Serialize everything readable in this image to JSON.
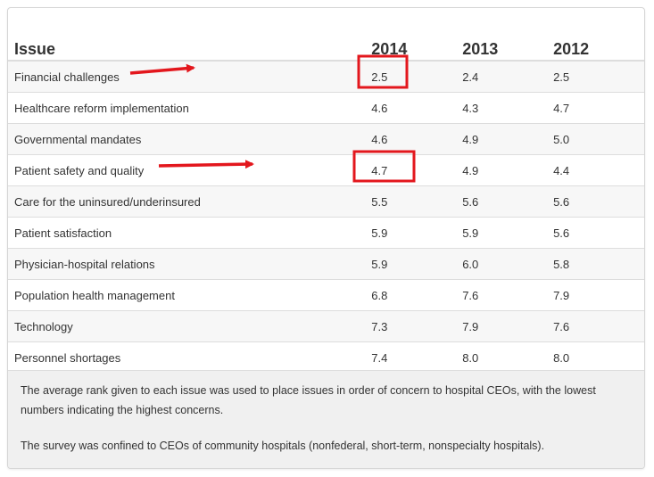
{
  "chart_data": {
    "type": "table",
    "columns": [
      "Issue",
      "2014",
      "2013",
      "2012"
    ],
    "rows": [
      {
        "issue": "Financial challenges",
        "y2014": "2.5",
        "y2013": "2.4",
        "y2012": "2.5"
      },
      {
        "issue": "Healthcare reform implementation",
        "y2014": "4.6",
        "y2013": "4.3",
        "y2012": "4.7"
      },
      {
        "issue": "Governmental mandates",
        "y2014": "4.6",
        "y2013": "4.9",
        "y2012": "5.0"
      },
      {
        "issue": "Patient safety and quality",
        "y2014": "4.7",
        "y2013": "4.9",
        "y2012": "4.4"
      },
      {
        "issue": "Care for the uninsured/underinsured",
        "y2014": "5.5",
        "y2013": "5.6",
        "y2012": "5.6"
      },
      {
        "issue": "Patient satisfaction",
        "y2014": "5.9",
        "y2013": "5.9",
        "y2012": "5.6"
      },
      {
        "issue": "Physician-hospital relations",
        "y2014": "5.9",
        "y2013": "6.0",
        "y2012": "5.8"
      },
      {
        "issue": "Population health management",
        "y2014": "6.8",
        "y2013": "7.6",
        "y2012": "7.9"
      },
      {
        "issue": "Technology",
        "y2014": "7.3",
        "y2013": "7.9",
        "y2012": "7.6"
      },
      {
        "issue": "Personnel shortages",
        "y2014": "7.4",
        "y2013": "8.0",
        "y2012": "8.0"
      }
    ],
    "notes": [
      "The average rank given to each issue was used to place issues in order of concern to hospital CEOs, with the lowest numbers indicating the highest concerns.",
      "The survey was confined to CEOs of community hospitals (nonfederal, short-term, nonspecialty hospitals)."
    ],
    "highlighted_cells": [
      {
        "row": "Financial challenges",
        "column": "2014"
      },
      {
        "row": "Patient safety and quality",
        "column": "2014"
      }
    ],
    "highlight_color": "#e3171d",
    "arrow_color": "#e3171d"
  }
}
